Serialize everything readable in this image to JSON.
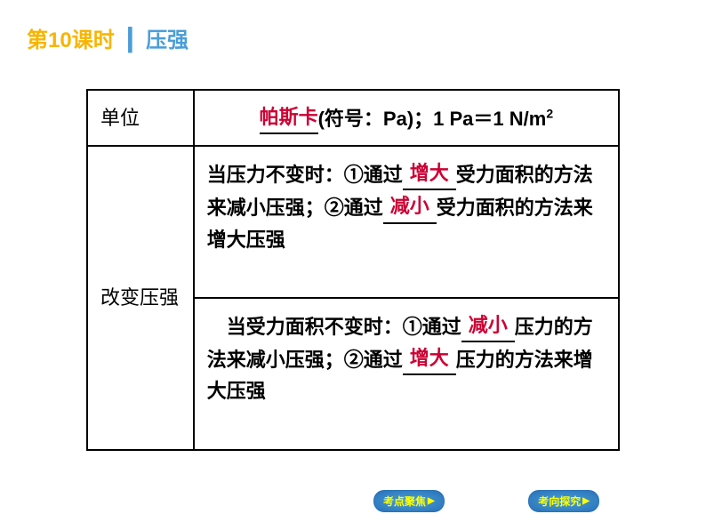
{
  "header": {
    "lesson": "第10课时",
    "divider": "┃",
    "topic": "压强"
  },
  "table": {
    "row1": {
      "label": "单位",
      "fill1": "帕斯卡",
      "text1": "(符号：Pa)；1 Pa＝1 N/m",
      "sup": "2"
    },
    "row2": {
      "label": "改变压强",
      "cell1_prefix": "当压力不变时：①通过",
      "cell1_fill1": "增大",
      "cell1_mid": "受力面积的方法来减小压强；②通过",
      "cell1_fill2": "减小",
      "cell1_suffix": "受力面积的方法来增大压强",
      "cell2_prefix": "　当受力面积不变时：①通过",
      "cell2_fill1": "减小",
      "cell2_mid": "压力的方法来减小压强；②通过",
      "cell2_fill2": "增大",
      "cell2_suffix": "压力的方法来增大压强"
    }
  },
  "footer": {
    "btn1": "考点聚焦",
    "btn2": "考向探究"
  },
  "colors": {
    "header_yellow": "#f7b500",
    "header_blue": "#4a9ed8",
    "red_text": "#cc0033",
    "btn_bg": "#2871b8",
    "btn_text": "#ffff00"
  }
}
